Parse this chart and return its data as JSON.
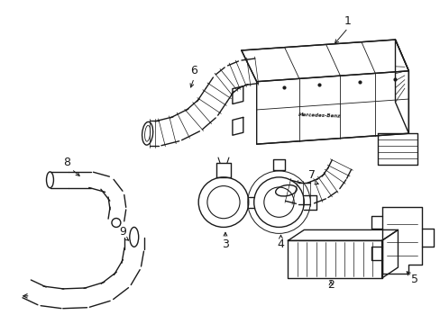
{
  "background_color": "#ffffff",
  "line_color": "#1a1a1a",
  "line_width": 1.0,
  "label_fontsize": 9,
  "figsize": [
    4.89,
    3.6
  ],
  "dpi": 100
}
